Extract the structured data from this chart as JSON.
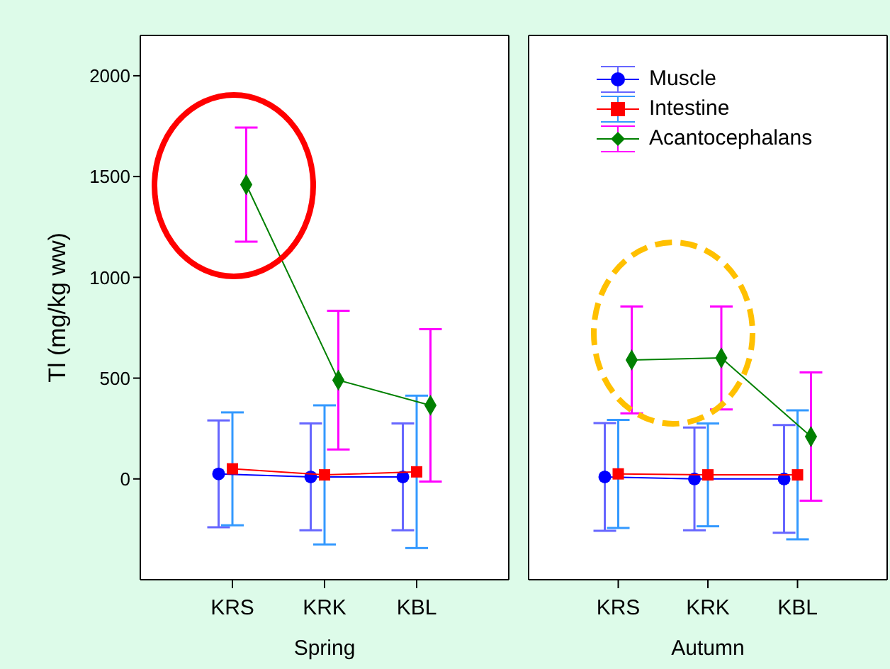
{
  "chart_data": [
    {
      "type": "line",
      "xlabel": "Spring",
      "ylabel": "Tl (mg/kg ww)",
      "categories": [
        "KRS",
        "KRK",
        "KBL"
      ],
      "ylim": [
        -500,
        2200
      ],
      "yticks": [
        0,
        500,
        1000,
        1500,
        2000
      ],
      "series": [
        {
          "color": "#0000ff",
          "marker": "circle",
          "values": [
            25,
            10,
            10
          ],
          "errors": [
            265,
            265,
            265
          ]
        },
        {
          "color": "#ff0000",
          "marker": "square",
          "values": [
            50,
            20,
            35
          ],
          "errors": [
            280,
            345,
            378
          ]
        },
        {
          "color": "#008000",
          "marker": "diamond",
          "values": [
            1460,
            490,
            365
          ],
          "errors": [
            283,
            344,
            378
          ]
        }
      ]
    },
    {
      "type": "line",
      "xlabel": "Autumn",
      "categories": [
        "KRS",
        "KRK",
        "KBL"
      ],
      "ylim": [
        -500,
        2200
      ],
      "yticks": [
        0,
        500,
        1000,
        1500,
        2000
      ],
      "tick_labels": "x",
      "legend": "top",
      "series": [
        {
          "name": "Muscle",
          "color": "#0000ff",
          "marker": "circle",
          "values": [
            10,
            0,
            0
          ],
          "errors": [
            267,
            255,
            267
          ]
        },
        {
          "name": "Intestine",
          "color": "#ff0000",
          "marker": "square",
          "values": [
            25,
            20,
            20
          ],
          "errors": [
            268,
            255,
            320
          ]
        },
        {
          "name": "Acantocephalans",
          "color": "#008000",
          "marker": "diamond",
          "values": [
            590,
            600,
            210
          ],
          "errors": [
            265,
            255,
            318
          ]
        }
      ]
    }
  ]
}
